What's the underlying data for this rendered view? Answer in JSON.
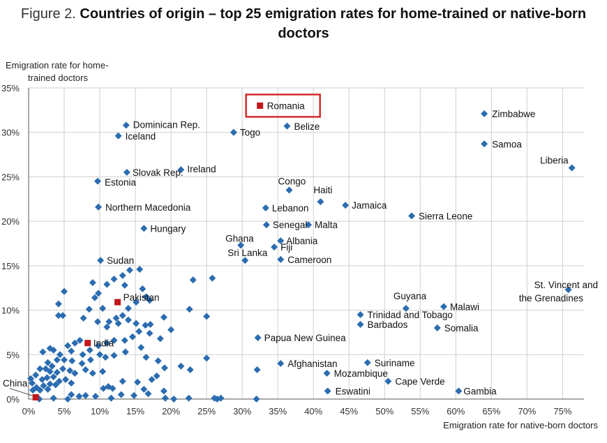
{
  "figure": {
    "prefix": "Figure 2.",
    "title": "Countries of origin – top 25 emigration rates for home-trained or native-born doctors"
  },
  "chart_data": {
    "type": "scatter",
    "xlabel": "Emigration rate for native-born doctors",
    "ylabel_lines": [
      "Emigration rate for home-",
      "trained doctors"
    ],
    "xlim": [
      0,
      78
    ],
    "ylim": [
      0,
      35
    ],
    "x_ticks": [
      0,
      5,
      10,
      15,
      20,
      25,
      30,
      35,
      40,
      45,
      50,
      55,
      60,
      65,
      70,
      75
    ],
    "y_ticks": [
      0,
      5,
      10,
      15,
      20,
      25,
      30,
      35
    ],
    "x_tick_labels": [
      "0%",
      "5%",
      "10%",
      "15%",
      "20%",
      "25%",
      "30%",
      "35%",
      "40%",
      "45%",
      "50%",
      "55%",
      "60%",
      "65%",
      "70%",
      "75%"
    ],
    "y_tick_labels": [
      "0%",
      "5%",
      "10%",
      "15%",
      "20%",
      "25%",
      "30%",
      "35%"
    ],
    "grid": true,
    "colors": {
      "points": "#2b6cb0",
      "highlight": "#c0161c",
      "box": "#d42a2a",
      "grid": "#cfcfcf"
    },
    "highlight_box_label": "Romania",
    "highlighted": [
      {
        "label": "Romania",
        "x": 32.5,
        "y": 33.0
      },
      {
        "label": "Pakistan",
        "x": 12.5,
        "y": 10.9
      },
      {
        "label": "India",
        "x": 8.3,
        "y": 6.3
      },
      {
        "label": "China",
        "x": 1.0,
        "y": 0.2
      }
    ],
    "labeled_points": [
      {
        "label": "Zimbabwe",
        "x": 64.0,
        "y": 32.1
      },
      {
        "label": "Samoa",
        "x": 64.0,
        "y": 28.7
      },
      {
        "label": "Liberia",
        "x": 76.3,
        "y": 26.0
      },
      {
        "label": "Belize",
        "x": 36.3,
        "y": 30.7
      },
      {
        "label": "Togo",
        "x": 28.8,
        "y": 30.0
      },
      {
        "label": "Dominican Rep.",
        "x": 13.7,
        "y": 30.8
      },
      {
        "label": "Iceland",
        "x": 12.6,
        "y": 29.6
      },
      {
        "label": "Slovak Rep.",
        "x": 13.8,
        "y": 25.5
      },
      {
        "label": "Ireland",
        "x": 21.4,
        "y": 25.8
      },
      {
        "label": "Estonia",
        "x": 9.7,
        "y": 24.5
      },
      {
        "label": "Congo",
        "x": 36.6,
        "y": 23.5
      },
      {
        "label": "Haiti",
        "x": 41.0,
        "y": 22.2
      },
      {
        "label": "Jamaica",
        "x": 44.5,
        "y": 21.8
      },
      {
        "label": "Lebanon",
        "x": 33.3,
        "y": 21.5
      },
      {
        "label": "Sierra Leone",
        "x": 53.8,
        "y": 20.6
      },
      {
        "label": "Northern Macedonia",
        "x": 9.8,
        "y": 21.6
      },
      {
        "label": "Senegal",
        "x": 33.4,
        "y": 19.6
      },
      {
        "label": "Malta",
        "x": 39.3,
        "y": 19.6
      },
      {
        "label": "Hungary",
        "x": 16.2,
        "y": 19.2
      },
      {
        "label": "Ghana",
        "x": 29.8,
        "y": 17.3
      },
      {
        "label": "Albania",
        "x": 35.4,
        "y": 17.8
      },
      {
        "label": "Fiji",
        "x": 34.5,
        "y": 17.1
      },
      {
        "label": "Sri Lanka",
        "x": 30.4,
        "y": 15.6
      },
      {
        "label": "Cameroon",
        "x": 35.4,
        "y": 15.7
      },
      {
        "label": "Sudan",
        "x": 10.1,
        "y": 15.6
      },
      {
        "label": "St. Vincent and the Grenadines",
        "x": 75.8,
        "y": 12.3
      },
      {
        "label": "Guyana",
        "x": 53.0,
        "y": 10.2
      },
      {
        "label": "Malawi",
        "x": 58.3,
        "y": 10.4
      },
      {
        "label": "Trinidad and Tobago",
        "x": 46.6,
        "y": 9.5
      },
      {
        "label": "Barbados",
        "x": 46.6,
        "y": 8.4
      },
      {
        "label": "Somalia",
        "x": 57.4,
        "y": 8.0
      },
      {
        "label": "Papua New Guinea",
        "x": 32.2,
        "y": 6.9
      },
      {
        "label": "Afghanistan",
        "x": 35.4,
        "y": 4.0
      },
      {
        "label": "Suriname",
        "x": 47.6,
        "y": 4.1
      },
      {
        "label": "Mozambique",
        "x": 41.9,
        "y": 2.9
      },
      {
        "label": "Cape Verde",
        "x": 50.5,
        "y": 2.0
      },
      {
        "label": "Eswatini",
        "x": 42.0,
        "y": 0.9
      },
      {
        "label": "Gambia",
        "x": 60.4,
        "y": 0.9
      }
    ],
    "other_points": [
      [
        5.0,
        12.1
      ],
      [
        4.2,
        10.7
      ],
      [
        4.2,
        9.4
      ],
      [
        4.8,
        9.4
      ],
      [
        9.0,
        13.1
      ],
      [
        9.8,
        11.9
      ],
      [
        11.0,
        12.9
      ],
      [
        12.0,
        13.5
      ],
      [
        13.2,
        13.9
      ],
      [
        13.5,
        12.8
      ],
      [
        14.2,
        14.5
      ],
      [
        15.6,
        14.6
      ],
      [
        16.0,
        12.4
      ],
      [
        16.5,
        11.5
      ],
      [
        17.0,
        11.1
      ],
      [
        15.1,
        10.9
      ],
      [
        14.0,
        10.2
      ],
      [
        13.2,
        9.4
      ],
      [
        12.3,
        9.1
      ],
      [
        11.3,
        8.7
      ],
      [
        10.4,
        10.2
      ],
      [
        9.3,
        11.4
      ],
      [
        8.5,
        10.1
      ],
      [
        7.7,
        9.1
      ],
      [
        9.7,
        8.7
      ],
      [
        11.0,
        8.1
      ],
      [
        12.6,
        8.5
      ],
      [
        14.0,
        8.9
      ],
      [
        15.1,
        8.5
      ],
      [
        16.4,
        8.3
      ],
      [
        17.1,
        8.4
      ],
      [
        19.0,
        9.2
      ],
      [
        20.0,
        7.8
      ],
      [
        18.5,
        6.8
      ],
      [
        17.0,
        7.4
      ],
      [
        15.5,
        7.6
      ],
      [
        14.6,
        7.0
      ],
      [
        13.5,
        6.6
      ],
      [
        12.0,
        6.6
      ],
      [
        11.0,
        6.3
      ],
      [
        9.8,
        6.0
      ],
      [
        8.6,
        5.5
      ],
      [
        7.6,
        5.0
      ],
      [
        6.5,
        6.3
      ],
      [
        5.5,
        6.0
      ],
      [
        6.0,
        5.4
      ],
      [
        7.2,
        6.6
      ],
      [
        4.4,
        5.0
      ],
      [
        3.5,
        5.5
      ],
      [
        3.0,
        5.7
      ],
      [
        2.0,
        5.3
      ],
      [
        4.0,
        4.4
      ],
      [
        5.0,
        4.4
      ],
      [
        6.1,
        4.3
      ],
      [
        7.5,
        4.0
      ],
      [
        8.7,
        4.4
      ],
      [
        10.0,
        5.0
      ],
      [
        10.8,
        4.7
      ],
      [
        12.0,
        4.9
      ],
      [
        13.6,
        5.3
      ],
      [
        15.8,
        5.8
      ],
      [
        16.5,
        4.7
      ],
      [
        18.2,
        4.3
      ],
      [
        19.1,
        3.5
      ],
      [
        21.4,
        3.7
      ],
      [
        22.7,
        3.3
      ],
      [
        25.0,
        4.6
      ],
      [
        2.7,
        4.1
      ],
      [
        3.3,
        3.7
      ],
      [
        2.4,
        3.4
      ],
      [
        1.6,
        3.4
      ],
      [
        3.0,
        3.1
      ],
      [
        4.0,
        3.0
      ],
      [
        4.8,
        3.4
      ],
      [
        5.8,
        3.2
      ],
      [
        6.5,
        2.9
      ],
      [
        8.0,
        3.3
      ],
      [
        9.0,
        2.9
      ],
      [
        10.4,
        3.1
      ],
      [
        1.0,
        2.7
      ],
      [
        1.9,
        2.2
      ],
      [
        2.6,
        2.4
      ],
      [
        3.5,
        2.5
      ],
      [
        4.3,
        2.0
      ],
      [
        5.2,
        2.2
      ],
      [
        6.0,
        1.8
      ],
      [
        2.1,
        1.5
      ],
      [
        3.0,
        1.7
      ],
      [
        3.8,
        1.6
      ],
      [
        0.5,
        1.8
      ],
      [
        1.1,
        1.3
      ],
      [
        0.3,
        2.3
      ],
      [
        0.6,
        1.0
      ],
      [
        1.6,
        1.0
      ],
      [
        2.7,
        1.1
      ],
      [
        10.5,
        1.2
      ],
      [
        11.2,
        1.4
      ],
      [
        11.8,
        1.2
      ],
      [
        13.2,
        2.0
      ],
      [
        15.3,
        1.9
      ],
      [
        16.2,
        1.1
      ],
      [
        17.3,
        2.2
      ],
      [
        18.0,
        2.6
      ],
      [
        19.0,
        0.9
      ],
      [
        13.0,
        0.5
      ],
      [
        14.8,
        0.4
      ],
      [
        16.8,
        0.6
      ],
      [
        19.2,
        0.1
      ],
      [
        20.4,
        0.0
      ],
      [
        22.5,
        0.1
      ],
      [
        26.1,
        0.1
      ],
      [
        26.5,
        0.0
      ],
      [
        27.0,
        0.1
      ],
      [
        32.0,
        0.0
      ],
      [
        32.1,
        3.3
      ],
      [
        1.5,
        0.0
      ],
      [
        3.5,
        0.1
      ],
      [
        5.5,
        0.0
      ],
      [
        7.1,
        0.3
      ],
      [
        9.4,
        0.3
      ],
      [
        11.6,
        0.1
      ],
      [
        6.0,
        0.5
      ],
      [
        8.0,
        0.4
      ],
      [
        25.8,
        13.6
      ],
      [
        23.1,
        13.4
      ],
      [
        22.6,
        10.1
      ],
      [
        25.0,
        9.3
      ]
    ]
  }
}
